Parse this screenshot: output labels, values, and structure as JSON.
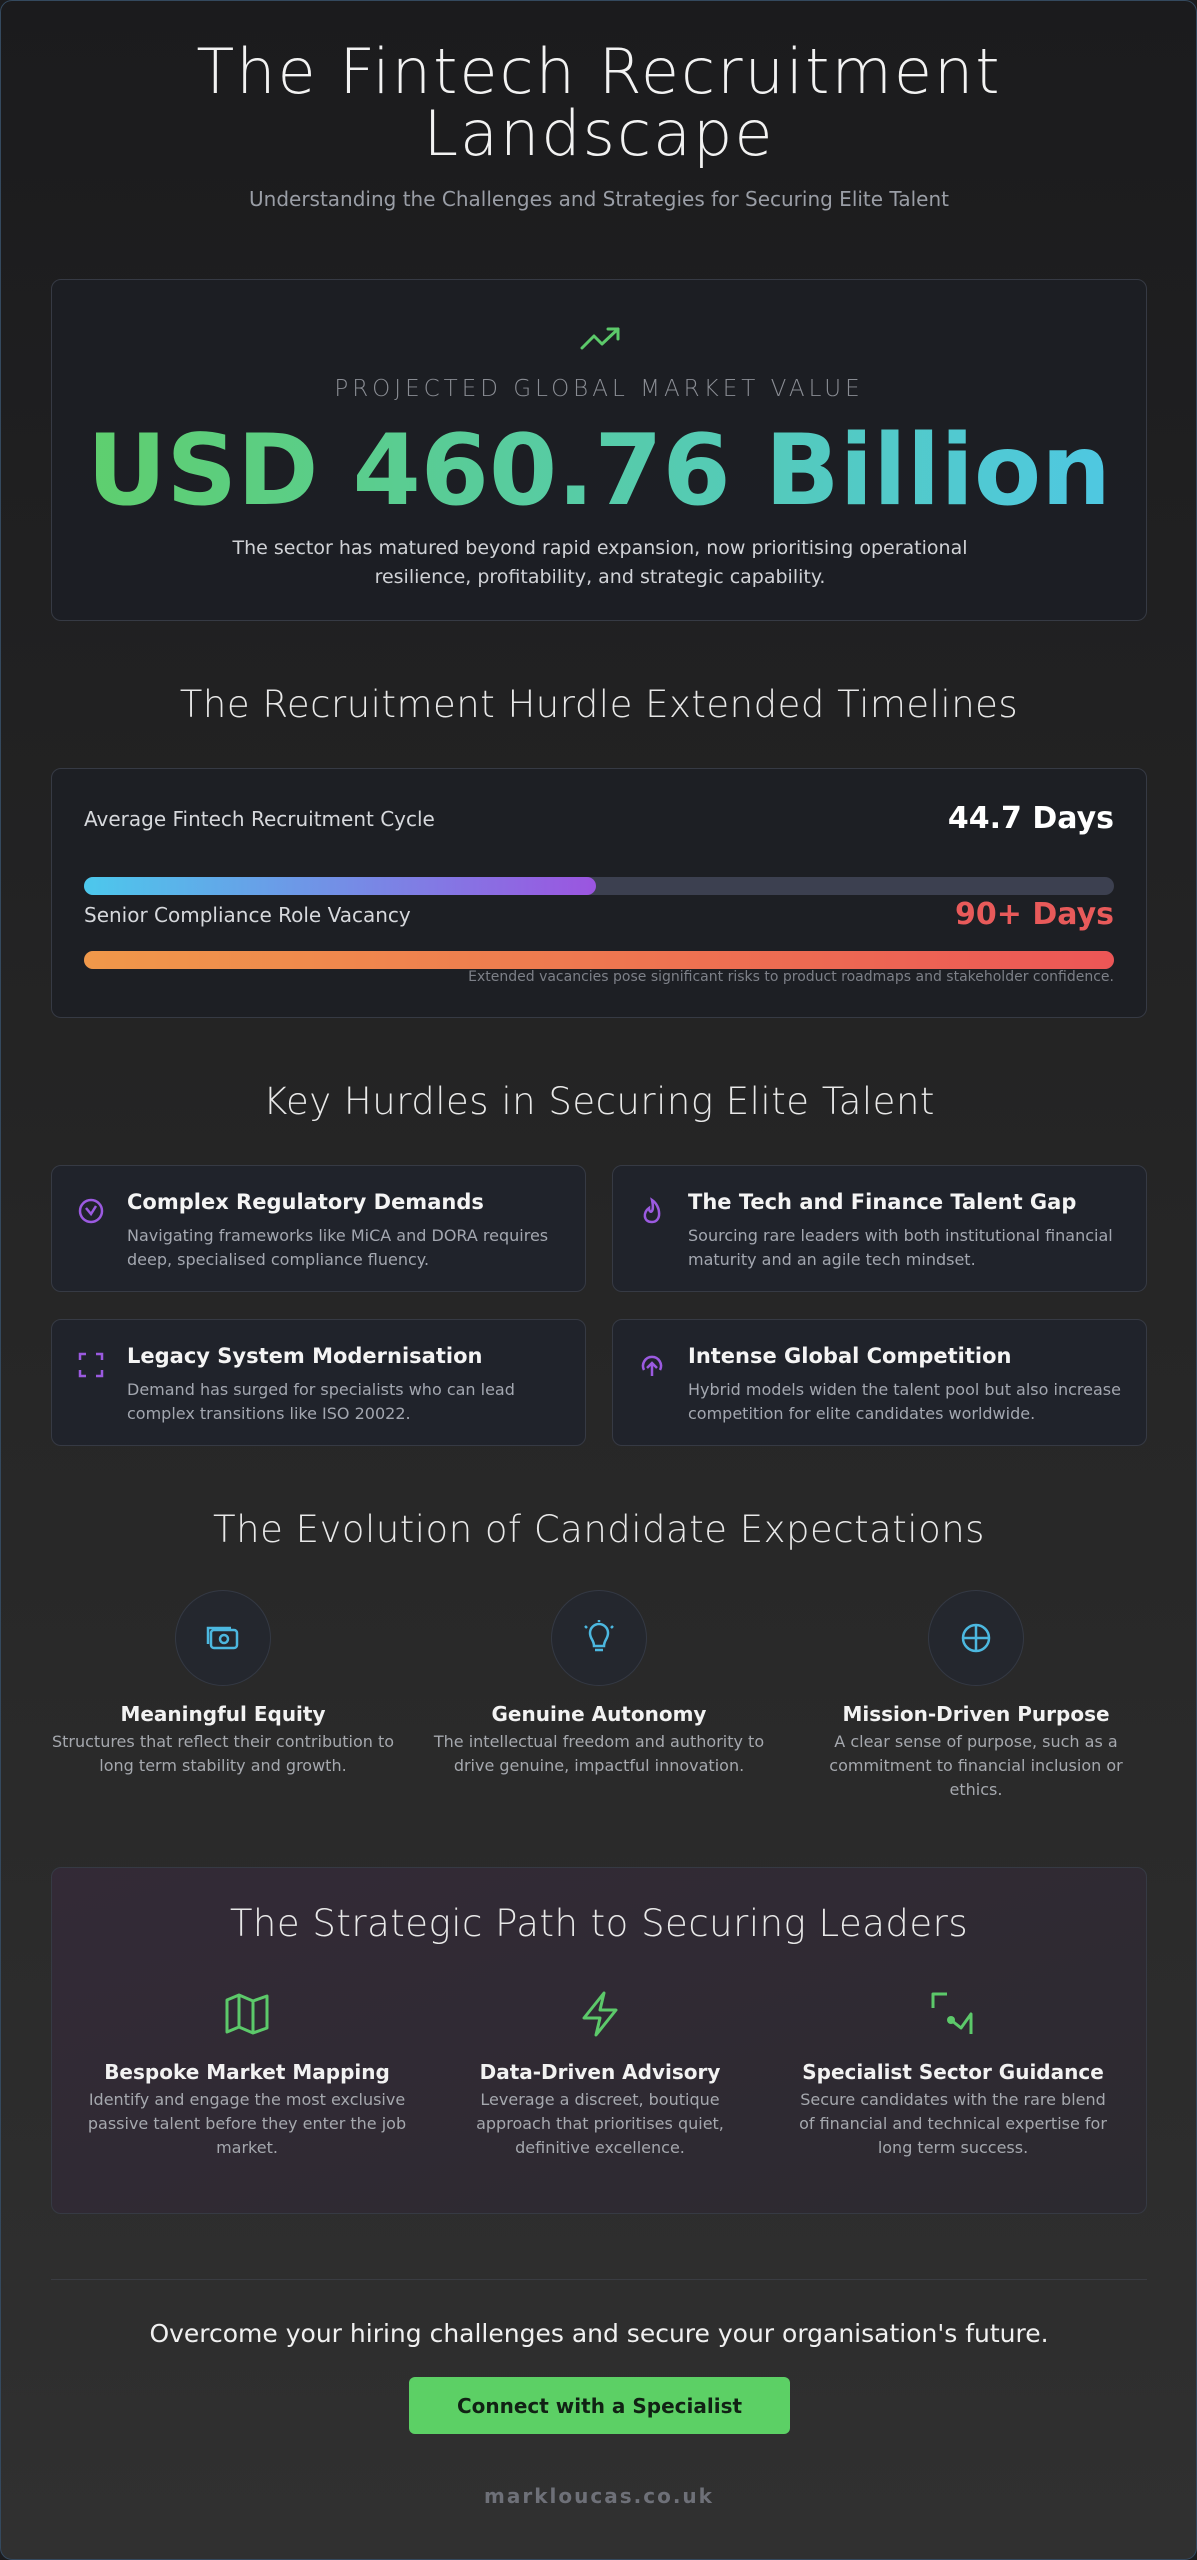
{
  "header": {
    "title": "The Fintech Recruitment Landscape",
    "subtitle": "Understanding the Challenges and Strategies for Securing Elite Talent"
  },
  "market": {
    "label": "PROJECTED GLOBAL MARKET VALUE",
    "value": "USD 460.76 Billion",
    "description": "The sector has matured beyond rapid expansion, now prioritising operational resilience, profitability, and strategic capability."
  },
  "timeline": {
    "title": "The Recruitment Hurdle Extended Timelines",
    "metrics": [
      {
        "label": "Average Fintech Recruitment Cycle",
        "value": 44.7,
        "value_label": "44.7 Days"
      },
      {
        "label": "Senior Compliance Role Vacancy",
        "value": 90,
        "value_label": "90+ Days"
      }
    ],
    "note": "Extended vacancies pose significant risks to product roadmaps and stakeholder confidence."
  },
  "hurdles": {
    "title": "Key Hurdles in Securing Elite Talent",
    "items": [
      {
        "title": "Complex Regulatory Demands",
        "text": "Navigating frameworks like MiCA and DORA requires deep, specialised compliance fluency."
      },
      {
        "title": "The Tech and Finance Talent Gap",
        "text": "Sourcing rare leaders with both institutional financial maturity and an agile tech mindset."
      },
      {
        "title": "Legacy System Modernisation",
        "text": "Demand has surged for specialists who can lead complex transitions like ISO 20022."
      },
      {
        "title": "Intense Global Competition",
        "text": "Hybrid models widen the talent pool but also increase competition for elite candidates worldwide."
      }
    ]
  },
  "expectations": {
    "title": "The Evolution of Candidate Expectations",
    "items": [
      {
        "title": "Meaningful Equity",
        "text": "Structures that reflect their contribution to long term stability and growth."
      },
      {
        "title": "Genuine Autonomy",
        "text": "The intellectual freedom and authority to drive genuine, impactful innovation."
      },
      {
        "title": "Mission-Driven Purpose",
        "text": "A clear sense of purpose, such as a commitment to financial inclusion or ethics."
      }
    ]
  },
  "strategy": {
    "title": "The Strategic Path to Securing Leaders",
    "items": [
      {
        "title": "Bespoke Market Mapping",
        "text": "Identify and engage the most exclusive passive talent before they enter the job market."
      },
      {
        "title": "Data-Driven Advisory",
        "text": "Leverage a discreet, boutique approach that prioritises quiet, definitive excellence."
      },
      {
        "title": "Specialist Sector Guidance",
        "text": "Secure candidates with the rare blend of financial and technical expertise for long term success."
      }
    ]
  },
  "cta": {
    "text": "Overcome your hiring challenges and secure your organisation's future.",
    "button": "Connect with a Specialist"
  },
  "footer": "markloucas.co.uk"
}
